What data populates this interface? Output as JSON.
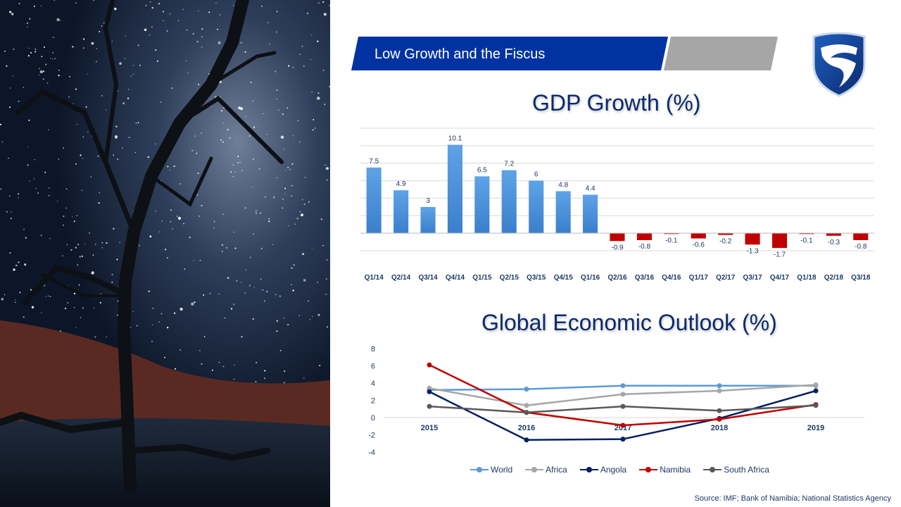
{
  "slide": {
    "title": "Low Growth and the Fiscus",
    "source": "Source: IMF; Bank of Namibia; National Statistics Agency"
  },
  "colors": {
    "banner_blue": "#0033a1",
    "banner_gray": "#a6a6a6",
    "positive_bar": "#4a90d9",
    "negative_bar": "#c00000",
    "title_text": "#0b2a6e"
  },
  "chart_data": [
    {
      "type": "bar",
      "title": "GDP Growth (%)",
      "categories": [
        "Q1/14",
        "Q2/14",
        "Q3/14",
        "Q4/14",
        "Q1/15",
        "Q2/15",
        "Q3/15",
        "Q4/15",
        "Q1/16",
        "Q2/16",
        "Q3/16",
        "Q4/16",
        "Q1/17",
        "Q2/17",
        "Q3/17",
        "Q4/17",
        "Q1/18",
        "Q2/18",
        "Q3/18"
      ],
      "values": [
        7.5,
        4.9,
        3,
        10.1,
        6.5,
        7.2,
        6,
        4.8,
        4.4,
        -0.9,
        -0.8,
        -0.1,
        -0.6,
        -0.2,
        -1.3,
        -1.7,
        -0.1,
        -0.3,
        -0.8
      ],
      "ylim": [
        -2,
        12
      ],
      "grid": true
    },
    {
      "type": "line",
      "title": "Global Economic Outlook (%)",
      "x": [
        "2015",
        "2016",
        "2017",
        "2018",
        "2019"
      ],
      "yticks": [
        "8",
        "6",
        "4",
        "2",
        "0",
        "-2",
        "-4"
      ],
      "ylim": [
        -4,
        8
      ],
      "grid": false,
      "legend_position": "bottom",
      "series": [
        {
          "name": "World",
          "values": [
            3.2,
            3.3,
            3.7,
            3.7,
            3.7
          ],
          "color": "#5b9bd5"
        },
        {
          "name": "Africa",
          "values": [
            3.4,
            1.4,
            2.7,
            3.1,
            3.8
          ],
          "color": "#a6a6a6"
        },
        {
          "name": "Angola",
          "values": [
            3.0,
            -2.6,
            -2.5,
            -0.1,
            3.1
          ],
          "color": "#002060"
        },
        {
          "name": "Namibia",
          "values": [
            6.1,
            0.6,
            -0.9,
            -0.2,
            1.5
          ],
          "color": "#c00000"
        },
        {
          "name": "South Africa",
          "values": [
            1.3,
            0.6,
            1.3,
            0.8,
            1.4
          ],
          "color": "#595959"
        }
      ]
    }
  ]
}
